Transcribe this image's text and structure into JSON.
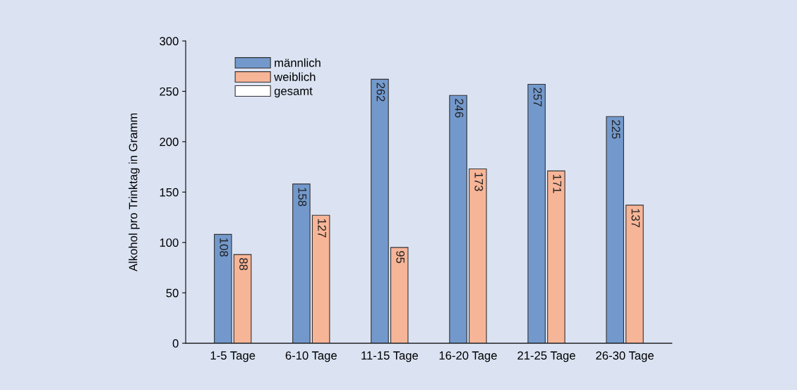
{
  "chart_data": {
    "type": "bar",
    "ylabel": "Alkohol pro Trinktag in Gramm",
    "categories": [
      "1-5 Tage",
      "6-10 Tage",
      "11-15 Tage",
      "16-20 Tage",
      "21-25 Tage",
      "26-30 Tage"
    ],
    "series": [
      {
        "name": "männlich",
        "color": "#7399cc",
        "values": [
          108,
          158,
          262,
          246,
          257,
          225
        ]
      },
      {
        "name": "weiblich",
        "color": "#f7b598",
        "values": [
          88,
          127,
          95,
          173,
          171,
          137
        ]
      },
      {
        "name": "gesamt",
        "color": "#ffffff",
        "values": [
          null,
          null,
          null,
          null,
          null,
          null
        ]
      }
    ],
    "ylim": [
      0,
      300
    ],
    "yticks": [
      0,
      50,
      100,
      150,
      200,
      250,
      300
    ],
    "data_labels": true,
    "legend": "top left",
    "grid": false
  }
}
